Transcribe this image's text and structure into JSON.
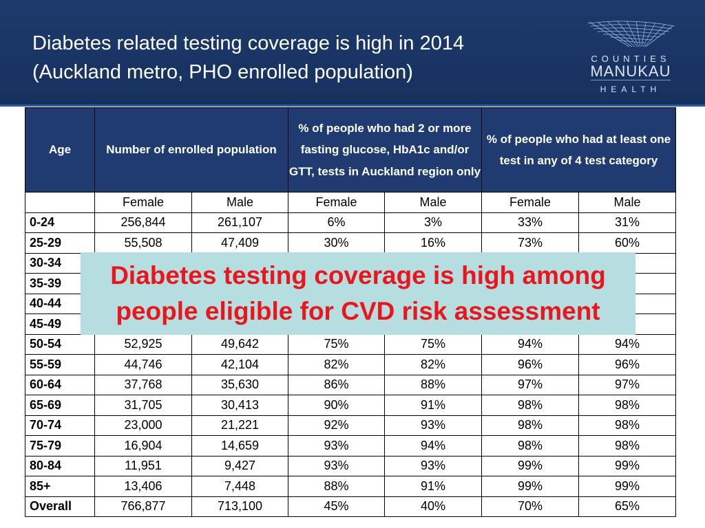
{
  "slide": {
    "title_line1": "Diabetes related testing coverage is high in 2014",
    "title_line2": "(Auckland metro, PHO enrolled population)"
  },
  "logo": {
    "line1": "COUNTIES",
    "line2": "MANUKAU",
    "line3": "HEALTH"
  },
  "table": {
    "headers": {
      "age": "Age",
      "enrolled": "Number of enrolled population",
      "fasting": "% of people who had 2 or more fasting glucose, HbA1c and/or GTT, tests in Auckland region only",
      "any_test": "% of people who had at least one test in any of 4 test category"
    },
    "subheaders": [
      "Female",
      "Male",
      "Female",
      "Male",
      "Female",
      "Male"
    ],
    "rows": [
      [
        "0-24",
        "256,844",
        "261,107",
        "6%",
        "3%",
        "33%",
        "31%"
      ],
      [
        "25-29",
        "55,508",
        "47,409",
        "30%",
        "16%",
        "73%",
        "60%"
      ],
      [
        "30-34",
        "",
        "",
        "",
        "",
        "",
        "%"
      ],
      [
        "35-39",
        "",
        "",
        "",
        "",
        "",
        "%"
      ],
      [
        "40-44",
        "",
        "",
        "",
        "",
        "",
        "%"
      ],
      [
        "45-49",
        "",
        "",
        "",
        "",
        "",
        "%"
      ],
      [
        "50-54",
        "52,925",
        "49,642",
        "75%",
        "75%",
        "94%",
        "94%"
      ],
      [
        "55-59",
        "44,746",
        "42,104",
        "82%",
        "82%",
        "96%",
        "96%"
      ],
      [
        "60-64",
        "37,768",
        "35,630",
        "86%",
        "88%",
        "97%",
        "97%"
      ],
      [
        "65-69",
        "31,705",
        "30,413",
        "90%",
        "91%",
        "98%",
        "98%"
      ],
      [
        "70-74",
        "23,000",
        "21,221",
        "92%",
        "93%",
        "98%",
        "98%"
      ],
      [
        "75-79",
        "16,904",
        "14,659",
        "93%",
        "94%",
        "98%",
        "98%"
      ],
      [
        "80-84",
        "11,951",
        "9,427",
        "93%",
        "93%",
        "99%",
        "99%"
      ],
      [
        "85+",
        "13,406",
        "7,448",
        "88%",
        "91%",
        "99%",
        "99%"
      ],
      [
        "Overall",
        "766,877",
        "713,100",
        "45%",
        "40%",
        "70%",
        "65%"
      ]
    ]
  },
  "callout": {
    "line1": "Diabetes testing coverage is high among",
    "line2": "people eligible for CVD risk assessment"
  },
  "colors": {
    "header_bg": "#1d3a6c",
    "table_header_bg": "#1f3b70",
    "callout_bg": "#b6dde0",
    "callout_text": "#e8161d"
  }
}
